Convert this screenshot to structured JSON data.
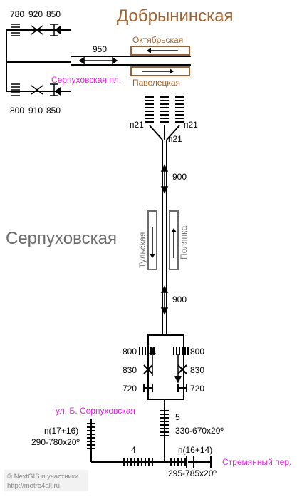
{
  "stations": {
    "dobryninskaya": {
      "name": "Добрынинская",
      "color": "#a0612a"
    },
    "serpukhovskaya": {
      "name": "Серпуховская",
      "color": "#6b6b6b"
    }
  },
  "platforms": {
    "oktyabrskaya": "Октябрьская",
    "paveletskaya": "Павелецкая",
    "tulskaya": "Тульская",
    "polyanka": "Полянка"
  },
  "exits": {
    "serpukhovskaya_pl": "Серпуховская пл.",
    "ul_b_serpukhovskaya": "ул. Б. Серпуховская",
    "stremyanny_per": "Стремянный пер."
  },
  "labels": {
    "top_dims": [
      "780",
      "920",
      "850"
    ],
    "bottom_dims": [
      "800",
      "910",
      "850"
    ],
    "passage_950": "950",
    "n21_left": "п21",
    "n21_right": "п21",
    "n21_center": "п21",
    "len_900_top": "900",
    "len_900_bottom": "900",
    "d800_left": "800",
    "d800_right": "800",
    "d830_left": "830",
    "d830_right": "830",
    "d720_left": "720",
    "d720_right": "720",
    "five": "5",
    "five_dim": "330-670x20º",
    "four": "4",
    "left_esc": "п(17+16)",
    "left_esc_dim": "290-780x20º",
    "right_esc": "п(16+14)",
    "right_esc_dim": "295-785x20º"
  },
  "credit": {
    "line1": "© NextGIS и участники",
    "line2": "http://metro4all.ru"
  },
  "colors": {
    "exit": "#e026e0",
    "dobryninskaya": "#a0612a",
    "serpukhovskaya": "#6b6b6b",
    "line": "#000000"
  }
}
